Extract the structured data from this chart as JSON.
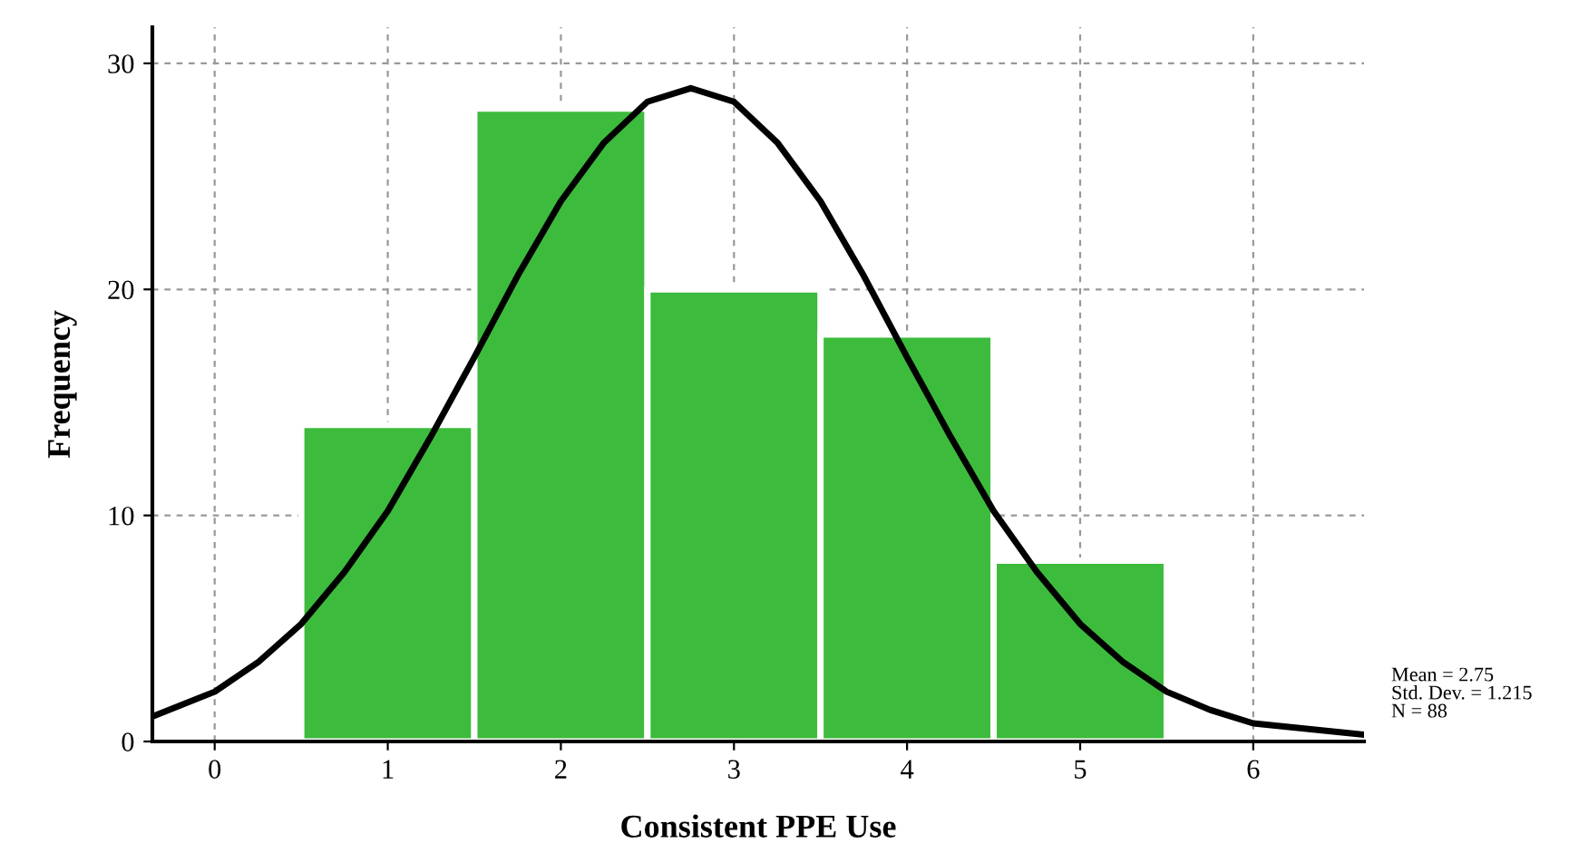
{
  "chart_data": {
    "type": "histogram",
    "xlabel": "Consistent PPE Use",
    "ylabel": "Frequency",
    "bins": [
      0.5,
      1.5,
      2.5,
      3.5,
      4.5,
      5.5
    ],
    "values": [
      14,
      28,
      20,
      18,
      8
    ],
    "color": "#3dbb3d",
    "series": [
      {
        "type": "line",
        "color": "#000000",
        "x": [
          -0.36,
          0,
          0.25,
          0.5,
          0.75,
          1,
          1.25,
          1.5,
          1.75,
          2,
          2.25,
          2.5,
          2.75,
          3,
          3.25,
          3.5,
          3.75,
          4,
          4.25,
          4.5,
          4.75,
          5,
          5.25,
          5.5,
          5.75,
          6,
          6.64
        ],
        "values": [
          1.1,
          2.2,
          3.5,
          5.2,
          7.5,
          10.2,
          13.5,
          17,
          20.6,
          23.9,
          26.5,
          28.3,
          28.9,
          28.3,
          26.5,
          23.9,
          20.6,
          17,
          13.5,
          10.2,
          7.5,
          5.2,
          3.5,
          2.2,
          1.4,
          0.8,
          0.3
        ]
      }
    ],
    "xlim": [
      -0.36,
      6.64
    ],
    "ylim": [
      0,
      31.6
    ],
    "xticks": [
      0,
      1,
      2,
      3,
      4,
      5,
      6
    ],
    "yticks": [
      0,
      10,
      20,
      30
    ],
    "grid": true,
    "annotations": [
      "Mean = 2.75",
      "Std. Dev. = 1.215",
      "N = 88"
    ]
  }
}
